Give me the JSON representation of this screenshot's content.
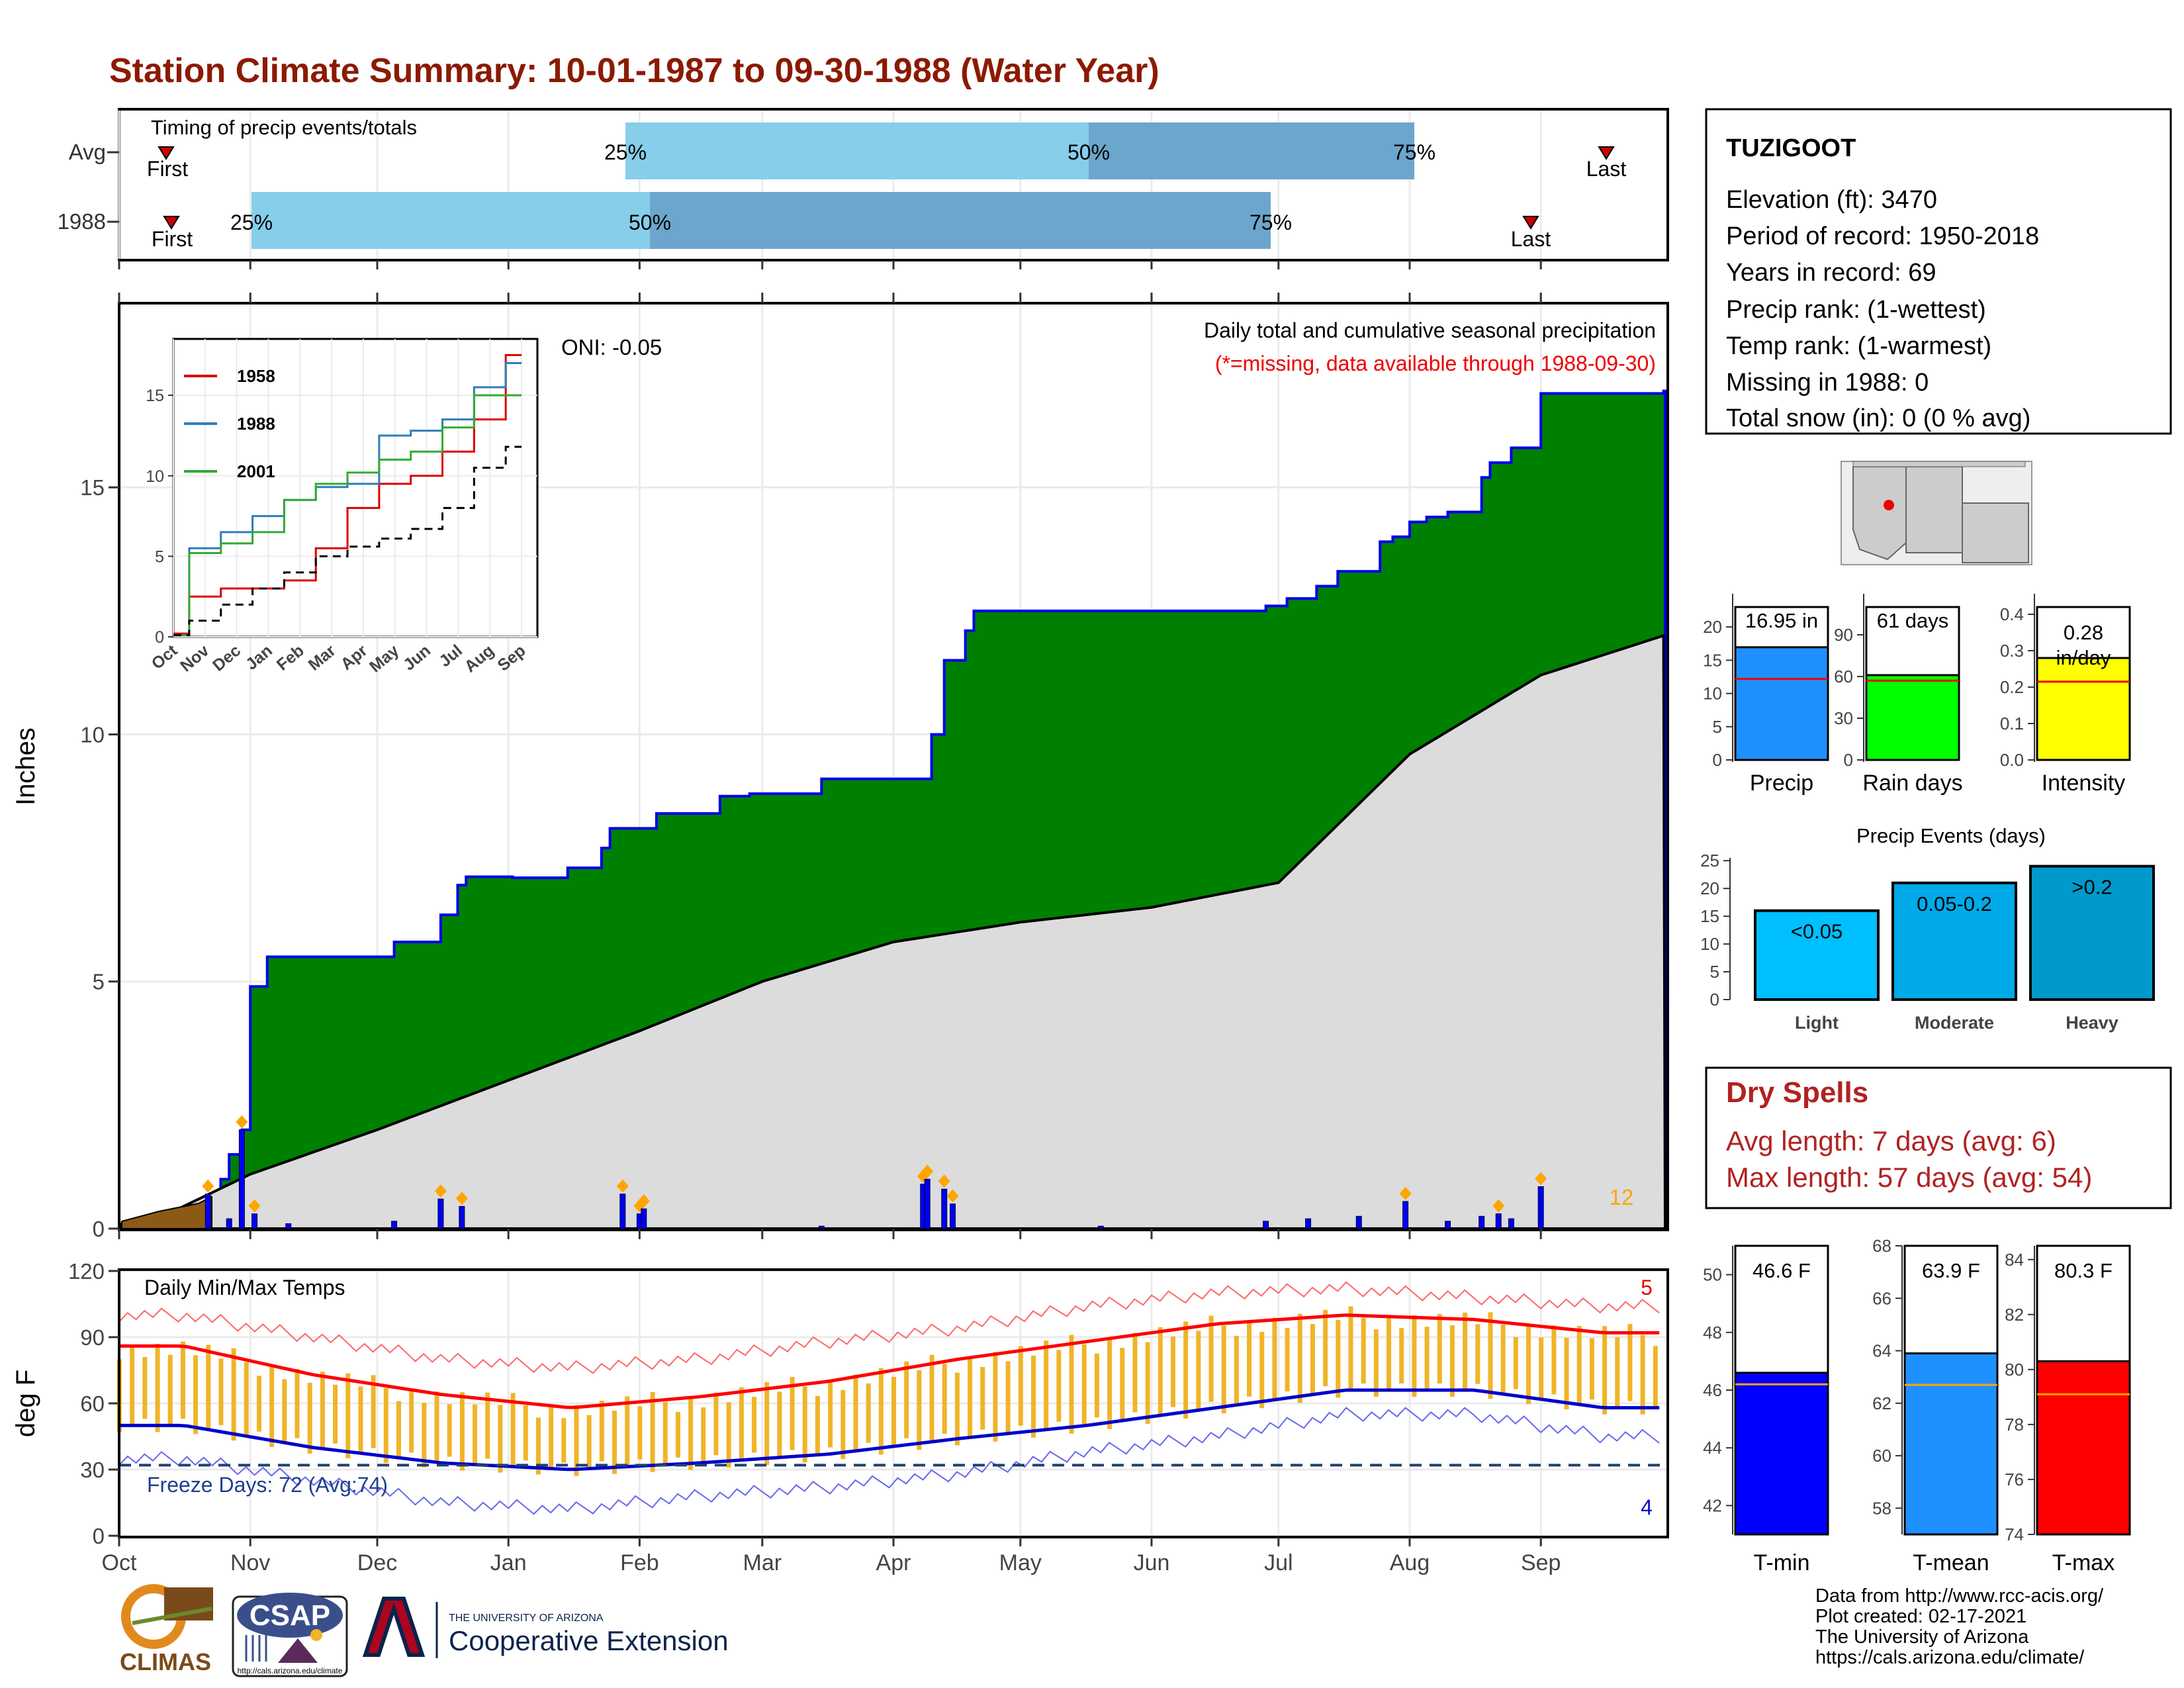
{
  "title": "Station Climate Summary: 10-01-1987 to 09-30-1988 (Water Year)",
  "months": [
    "Oct",
    "Nov",
    "Dec",
    "Jan",
    "Feb",
    "Mar",
    "Apr",
    "May",
    "Jun",
    "Jul",
    "Aug",
    "Sep"
  ],
  "colors": {
    "title": "#8B1A00",
    "cumulative_fill": "#008000",
    "cumulative_line": "#0000EE",
    "avg_cumulative_fill": "#DCDCDC",
    "daily_bar": "#0000EE",
    "marker": "#FFA500",
    "tmax": "#FF0000",
    "tmin": "#0000CC",
    "temp_range": "#F0B428",
    "timing_light": "#87CEEB",
    "timing_dark": "#6CA6CD"
  },
  "timing_panel": {
    "label": "Timing of precip events/totals",
    "rows": [
      {
        "name": "Avg",
        "first": "First",
        "last": "Last",
        "p25": "25%",
        "p50": "50%",
        "p75": "75%"
      },
      {
        "name": "1988",
        "first": "First",
        "last": "Last",
        "p25": "25%",
        "p50": "50%",
        "p75": "75%"
      }
    ]
  },
  "station": {
    "name": "TUZIGOOT",
    "lines": [
      "Elevation (ft): 3470",
      "Period of record: 1950-2018",
      "Years in record: 69",
      "Precip rank:  (1-wettest)",
      "Temp rank:  (1-warmest)",
      "Missing in 1988: 0",
      "Total snow (in): 0 (0 % avg)"
    ]
  },
  "precip_panel": {
    "ylabel": "Inches",
    "oni": "ONI: -0.05",
    "note1": "Daily total and cumulative seasonal precipitation",
    "note2": "(*=missing, data available through 1988-09-30)",
    "count_label": "12",
    "yticks": [
      "0",
      "5",
      "10",
      "15"
    ]
  },
  "inset": {
    "legend": [
      "1958",
      "1988",
      "2001"
    ],
    "legend_colors": [
      "#DD0000",
      "#2E7DBA",
      "#33AA33"
    ],
    "yticks": [
      "0",
      "5",
      "10",
      "15"
    ],
    "xticks": [
      "Oct",
      "Nov",
      "Dec",
      "Jan",
      "Feb",
      "Mar",
      "Apr",
      "May",
      "Jun",
      "Jul",
      "Aug",
      "Sep"
    ]
  },
  "temp_panel": {
    "ylabel": "deg F",
    "label": "Daily Min/Max Temps",
    "freeze": "Freeze Days: 72 (Avg:74)",
    "count_hi": "5",
    "count_lo": "4",
    "yticks": [
      "0",
      "30",
      "60",
      "90",
      "120"
    ]
  },
  "mini_bars": [
    {
      "name": "Precip",
      "value_label": "16.95 in",
      "value": 16.95,
      "avg": 12.2,
      "ymax": 23,
      "ticks": [
        "0",
        "5",
        "10",
        "15",
        "20"
      ],
      "tickvals": [
        0,
        5,
        10,
        15,
        20
      ],
      "color": "#1E90FF"
    },
    {
      "name": "Rain days",
      "value_label": "61 days",
      "value": 61,
      "avg": 57,
      "ymax": 110,
      "ticks": [
        "0",
        "30",
        "60",
        "90"
      ],
      "tickvals": [
        0,
        30,
        60,
        90
      ],
      "color": "#00FF00"
    },
    {
      "name": "Intensity",
      "value_label": "0.28 in/day",
      "value": 0.28,
      "avg": 0.215,
      "ymax": 0.42,
      "ticks": [
        "0.0",
        "0.1",
        "0.2",
        "0.3",
        "0.4"
      ],
      "tickvals": [
        0,
        0.1,
        0.2,
        0.3,
        0.4
      ],
      "color": "#FFFF00"
    }
  ],
  "precip_events": {
    "title": "Precip Events (days)",
    "ticks": [
      "0",
      "5",
      "10",
      "15",
      "20",
      "25"
    ],
    "bars": [
      {
        "name": "Light",
        "label": "<0.05",
        "value": 16,
        "color": "#00BFFF"
      },
      {
        "name": "Moderate",
        "label": "0.05-0.2",
        "value": 21,
        "color": "#00AAE8"
      },
      {
        "name": "Heavy",
        "label": ">0.2",
        "value": 24,
        "color": "#0099CC"
      }
    ]
  },
  "dry_spells": {
    "title": "Dry Spells",
    "avg": "Avg length: 7 days (avg: 6)",
    "max": "Max length: 57 days (avg: 54)"
  },
  "temp_bars": [
    {
      "name": "T-min",
      "value_label": "46.6 F",
      "value": 46.6,
      "avg": 46.2,
      "ymin": 41,
      "ymax": 51,
      "ticks": [
        "42",
        "44",
        "46",
        "48",
        "50"
      ],
      "tickvals": [
        42,
        44,
        46,
        48,
        50
      ],
      "color": "#0000FF"
    },
    {
      "name": "T-mean",
      "value_label": "63.9 F",
      "value": 63.9,
      "avg": 62.7,
      "ymin": 57,
      "ymax": 68,
      "ticks": [
        "58",
        "60",
        "62",
        "64",
        "66",
        "68"
      ],
      "tickvals": [
        58,
        60,
        62,
        64,
        66,
        68
      ],
      "color": "#1E90FF"
    },
    {
      "name": "T-max",
      "value_label": "80.3 F",
      "value": 80.3,
      "avg": 79.1,
      "ymin": 74,
      "ymax": 84.5,
      "ticks": [
        "74",
        "76",
        "78",
        "80",
        "82",
        "84"
      ],
      "tickvals": [
        74,
        76,
        78,
        80,
        82,
        84
      ],
      "color": "#FF0000"
    }
  ],
  "credits": [
    "Data from http://www.rcc-acis.org/",
    "Plot created: 02-17-2021",
    "The University of Arizona",
    "https://cals.arizona.edu/climate/"
  ],
  "logos": {
    "climas": "CLIMAS",
    "csap": "CSAP",
    "csap_url": "http://cals.arizona.edu/climate",
    "ua_small": "THE UNIVERSITY OF ARIZONA",
    "ua_big": "Cooperative Extension"
  },
  "chart_data": {
    "type": "area",
    "title": "Station Climate Summary: 10-01-1987 to 09-30-1988 (Water Year)",
    "ylabel": "Inches",
    "ylim": [
      0,
      18.7
    ],
    "cumulative_1988": {
      "x": [
        "Oct 1",
        "Oct 20",
        "Oct 25",
        "Oct 27",
        "Oct 30",
        "Nov 1",
        "Nov 5",
        "Dec 5",
        "Dec 16",
        "Dec 20",
        "Dec 22",
        "Jan 2",
        "Jan 15",
        "Jan 23",
        "Jan 25",
        "Feb 5",
        "Feb 20",
        "Feb 27",
        "Mar 15",
        "Apr 8",
        "Apr 10",
        "Apr 13",
        "Apr 18",
        "Apr 20",
        "May 20",
        "Jun 15",
        "Jun 28",
        "Jul 3",
        "Jul 10",
        "Jul 15",
        "Jul 25",
        "Jul 28",
        "Aug 1",
        "Aug 5",
        "Aug 10",
        "Aug 18",
        "Aug 20",
        "Aug 25",
        "Sep 1",
        "Sep 30"
      ],
      "values": [
        0.05,
        0.3,
        1.0,
        1.5,
        2.0,
        4.9,
        5.5,
        5.8,
        6.35,
        6.95,
        7.12,
        7.1,
        7.3,
        7.7,
        8.1,
        8.4,
        8.75,
        8.8,
        9.1,
        9.1,
        10.0,
        11.5,
        12.1,
        12.5,
        12.5,
        12.5,
        12.6,
        12.75,
        13.0,
        13.3,
        13.9,
        14.0,
        14.3,
        14.4,
        14.5,
        15.2,
        15.5,
        15.8,
        16.9,
        16.95
      ]
    },
    "avg_cumulative": {
      "x": [
        "Oct 1",
        "Oct 15",
        "Nov 1",
        "Dec 1",
        "Jan 1",
        "Feb 1",
        "Mar 1",
        "Apr 1",
        "May 1",
        "Jun 1",
        "Jul 1",
        "Aug 1",
        "Sep 1",
        "Sep 30"
      ],
      "values": [
        0.1,
        0.4,
        1.1,
        2.0,
        3.0,
        4.0,
        5.0,
        5.8,
        6.2,
        6.5,
        7.0,
        9.6,
        11.2,
        12.0
      ]
    },
    "daily_precip": {
      "x": [
        "Oct 22",
        "Oct 27",
        "Oct 30",
        "Nov 2",
        "Nov 10",
        "Dec 5",
        "Dec 16",
        "Dec 21",
        "Jan 28",
        "Feb 1",
        "Feb 2",
        "Mar 15",
        "Apr 8",
        "Apr 9",
        "Apr 13",
        "Apr 15",
        "May 20",
        "Jun 28",
        "Jul 8",
        "Jul 20",
        "Jul 31",
        "Aug 10",
        "Aug 18",
        "Aug 22",
        "Aug 25",
        "Sep 1"
      ],
      "values": [
        0.7,
        0.2,
        2.0,
        0.3,
        0.1,
        0.15,
        0.6,
        0.45,
        0.7,
        0.3,
        0.4,
        0.05,
        0.9,
        1.0,
        0.8,
        0.5,
        0.05,
        0.15,
        0.2,
        0.25,
        0.55,
        0.15,
        0.25,
        0.3,
        0.2,
        0.85
      ]
    },
    "temperature": {
      "type": "line",
      "ylabel": "deg F",
      "ylim": [
        0,
        120
      ],
      "freeze_line": 32,
      "x": [
        "Oct",
        "Nov",
        "Dec",
        "Jan",
        "Feb",
        "Mar",
        "Apr",
        "May",
        "Jun",
        "Jul",
        "Aug",
        "Sep"
      ],
      "avg_tmax": [
        86,
        73,
        64,
        58,
        63,
        70,
        80,
        88,
        96,
        100,
        98,
        92
      ],
      "avg_tmin": [
        50,
        40,
        33,
        30,
        33,
        37,
        44,
        50,
        58,
        66,
        66,
        58
      ],
      "record_max": [
        100,
        90,
        80,
        76,
        80,
        88,
        94,
        104,
        110,
        112,
        108,
        104
      ],
      "record_min": [
        35,
        25,
        15,
        12,
        18,
        22,
        28,
        38,
        45,
        55,
        55,
        45
      ]
    },
    "inset_cumulative": {
      "type": "line",
      "x": [
        "Oct",
        "Nov",
        "Dec",
        "Jan",
        "Feb",
        "Mar",
        "Apr",
        "May",
        "Jun",
        "Jul",
        "Aug",
        "Sep"
      ],
      "series": [
        {
          "name": "1958",
          "values": [
            0.2,
            2.5,
            3.0,
            3.0,
            3.5,
            5.5,
            8.0,
            9.5,
            10.0,
            11.5,
            13.5,
            17.5
          ]
        },
        {
          "name": "1988",
          "values": [
            0.1,
            5.5,
            6.5,
            7.5,
            8.5,
            9.3,
            9.5,
            12.5,
            12.8,
            13.5,
            15.5,
            17.0
          ]
        },
        {
          "name": "2001",
          "values": [
            0.1,
            5.2,
            5.8,
            6.5,
            8.5,
            9.5,
            10.2,
            11.0,
            11.5,
            13.0,
            15.0,
            15.0
          ]
        },
        {
          "name": "",
          "values": [
            0.1,
            1.0,
            2.0,
            3.0,
            4.0,
            5.0,
            5.6,
            6.1,
            6.7,
            8.0,
            10.5,
            11.8
          ]
        }
      ]
    }
  }
}
